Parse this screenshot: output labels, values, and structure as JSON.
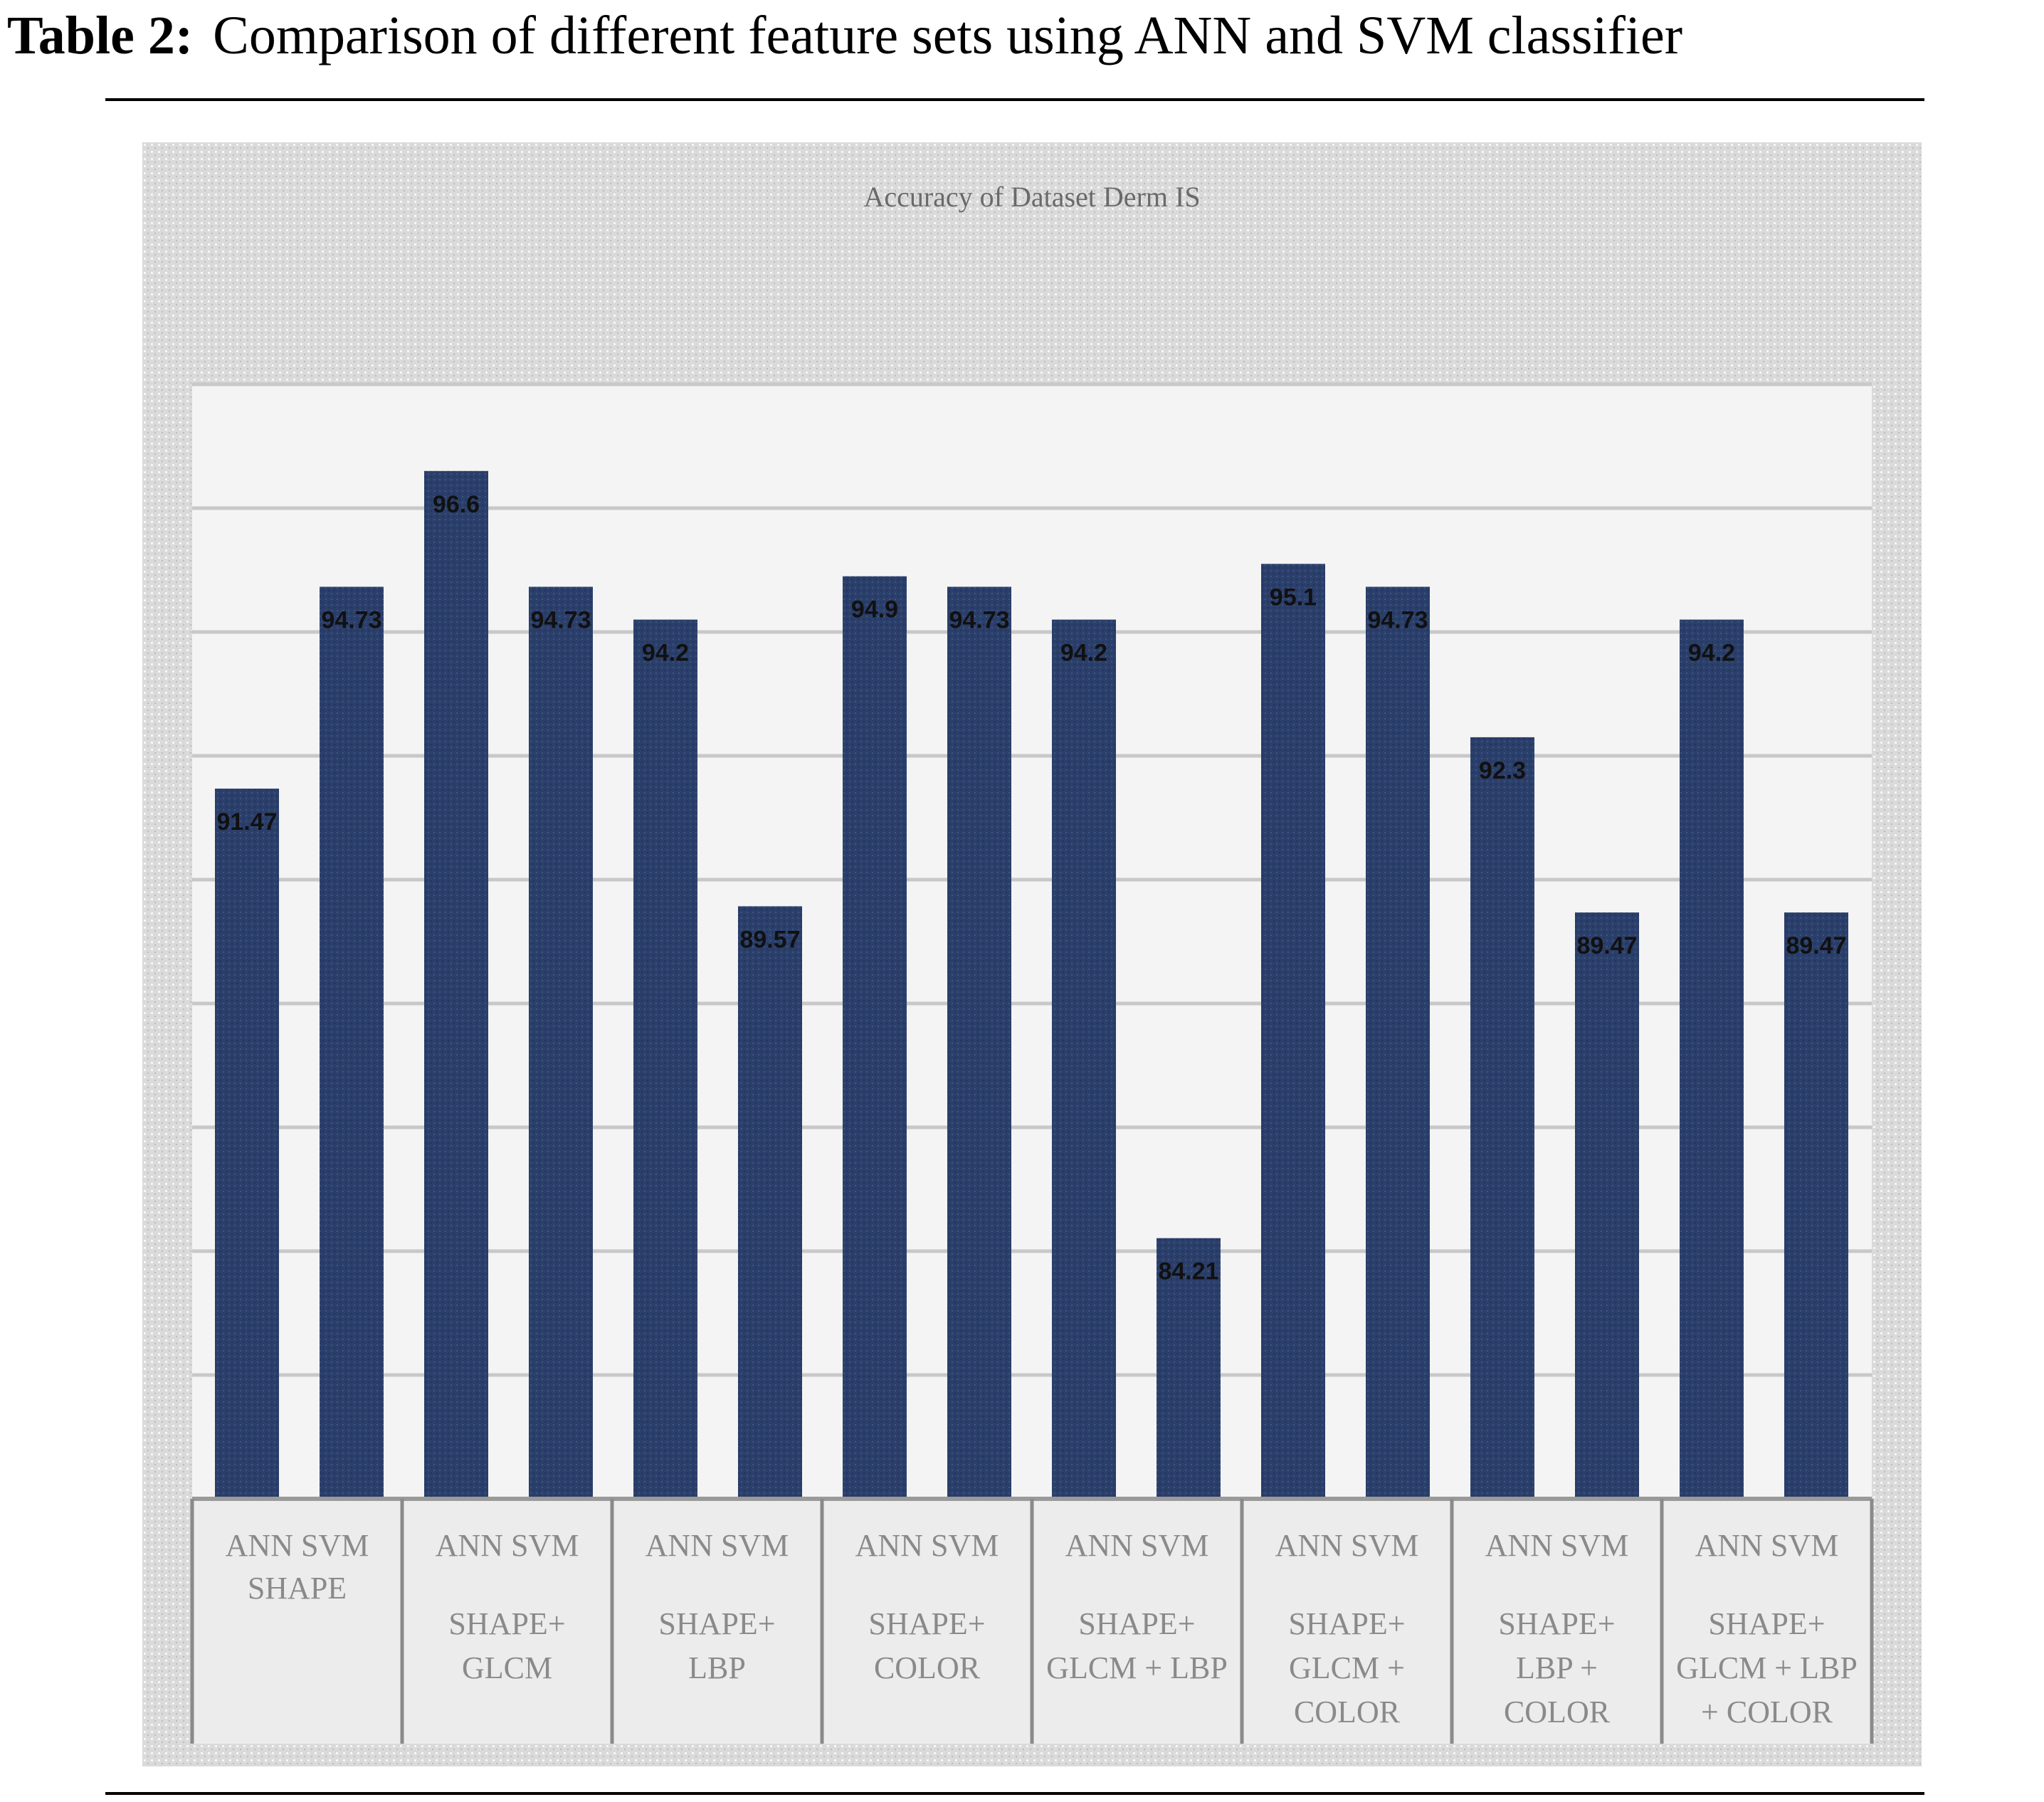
{
  "caption": {
    "label": "Table 2:",
    "text": "Comparison of different feature sets using ANN and SVM classifier"
  },
  "colors": {
    "bar": "#2b3f6b",
    "panel": "#d6d6d6",
    "plot": "#f5f5f5",
    "grid": "#c8c8c8"
  },
  "chart_data": {
    "type": "bar",
    "title": "Accuracy of Dataset Derm IS",
    "grid": true,
    "ylim": [
      80,
      98
    ],
    "groups": [
      {
        "label": [
          "SHAPE"
        ],
        "bars": [
          {
            "name": "ANN",
            "value": 91.47,
            "label": "91.47"
          },
          {
            "name": "SVM",
            "value": 94.73,
            "label": "94.73"
          }
        ]
      },
      {
        "label": [
          "SHAPE+",
          "GLCM"
        ],
        "bars": [
          {
            "name": "ANN",
            "value": 96.6,
            "label": "96.6"
          },
          {
            "name": "SVM",
            "value": 94.73,
            "label": "94.73"
          }
        ]
      },
      {
        "label": [
          "SHAPE+",
          "LBP"
        ],
        "bars": [
          {
            "name": "ANN",
            "value": 94.2,
            "label": "94.2"
          },
          {
            "name": "SVM",
            "value": 89.57,
            "label": "89.57"
          }
        ]
      },
      {
        "label": [
          "SHAPE+",
          "COLOR"
        ],
        "bars": [
          {
            "name": "ANN",
            "value": 94.9,
            "label": "94.9"
          },
          {
            "name": "SVM",
            "value": 94.73,
            "label": "94.73"
          }
        ]
      },
      {
        "label": [
          "SHAPE+",
          "GLCM + LBP"
        ],
        "bars": [
          {
            "name": "ANN",
            "value": 94.2,
            "label": "94.2"
          },
          {
            "name": "SVM",
            "value": 84.21,
            "label": "84.21"
          }
        ]
      },
      {
        "label": [
          "SHAPE+",
          "GLCM +",
          "COLOR"
        ],
        "bars": [
          {
            "name": "ANN",
            "value": 95.1,
            "label": "95.1"
          },
          {
            "name": "SVM",
            "value": 94.73,
            "label": "94.73"
          }
        ]
      },
      {
        "label": [
          "SHAPE+",
          "LBP +",
          "COLOR"
        ],
        "bars": [
          {
            "name": "ANN",
            "value": 92.3,
            "label": "92.3"
          },
          {
            "name": "SVM",
            "value": 89.47,
            "label": "89.47"
          }
        ]
      },
      {
        "label": [
          "SHAPE+",
          "GLCM + LBP",
          "+ COLOR"
        ],
        "bars": [
          {
            "name": "ANN",
            "value": 94.2,
            "label": "94.2"
          },
          {
            "name": "SVM",
            "value": 89.47,
            "label": "89.47"
          }
        ]
      }
    ]
  }
}
